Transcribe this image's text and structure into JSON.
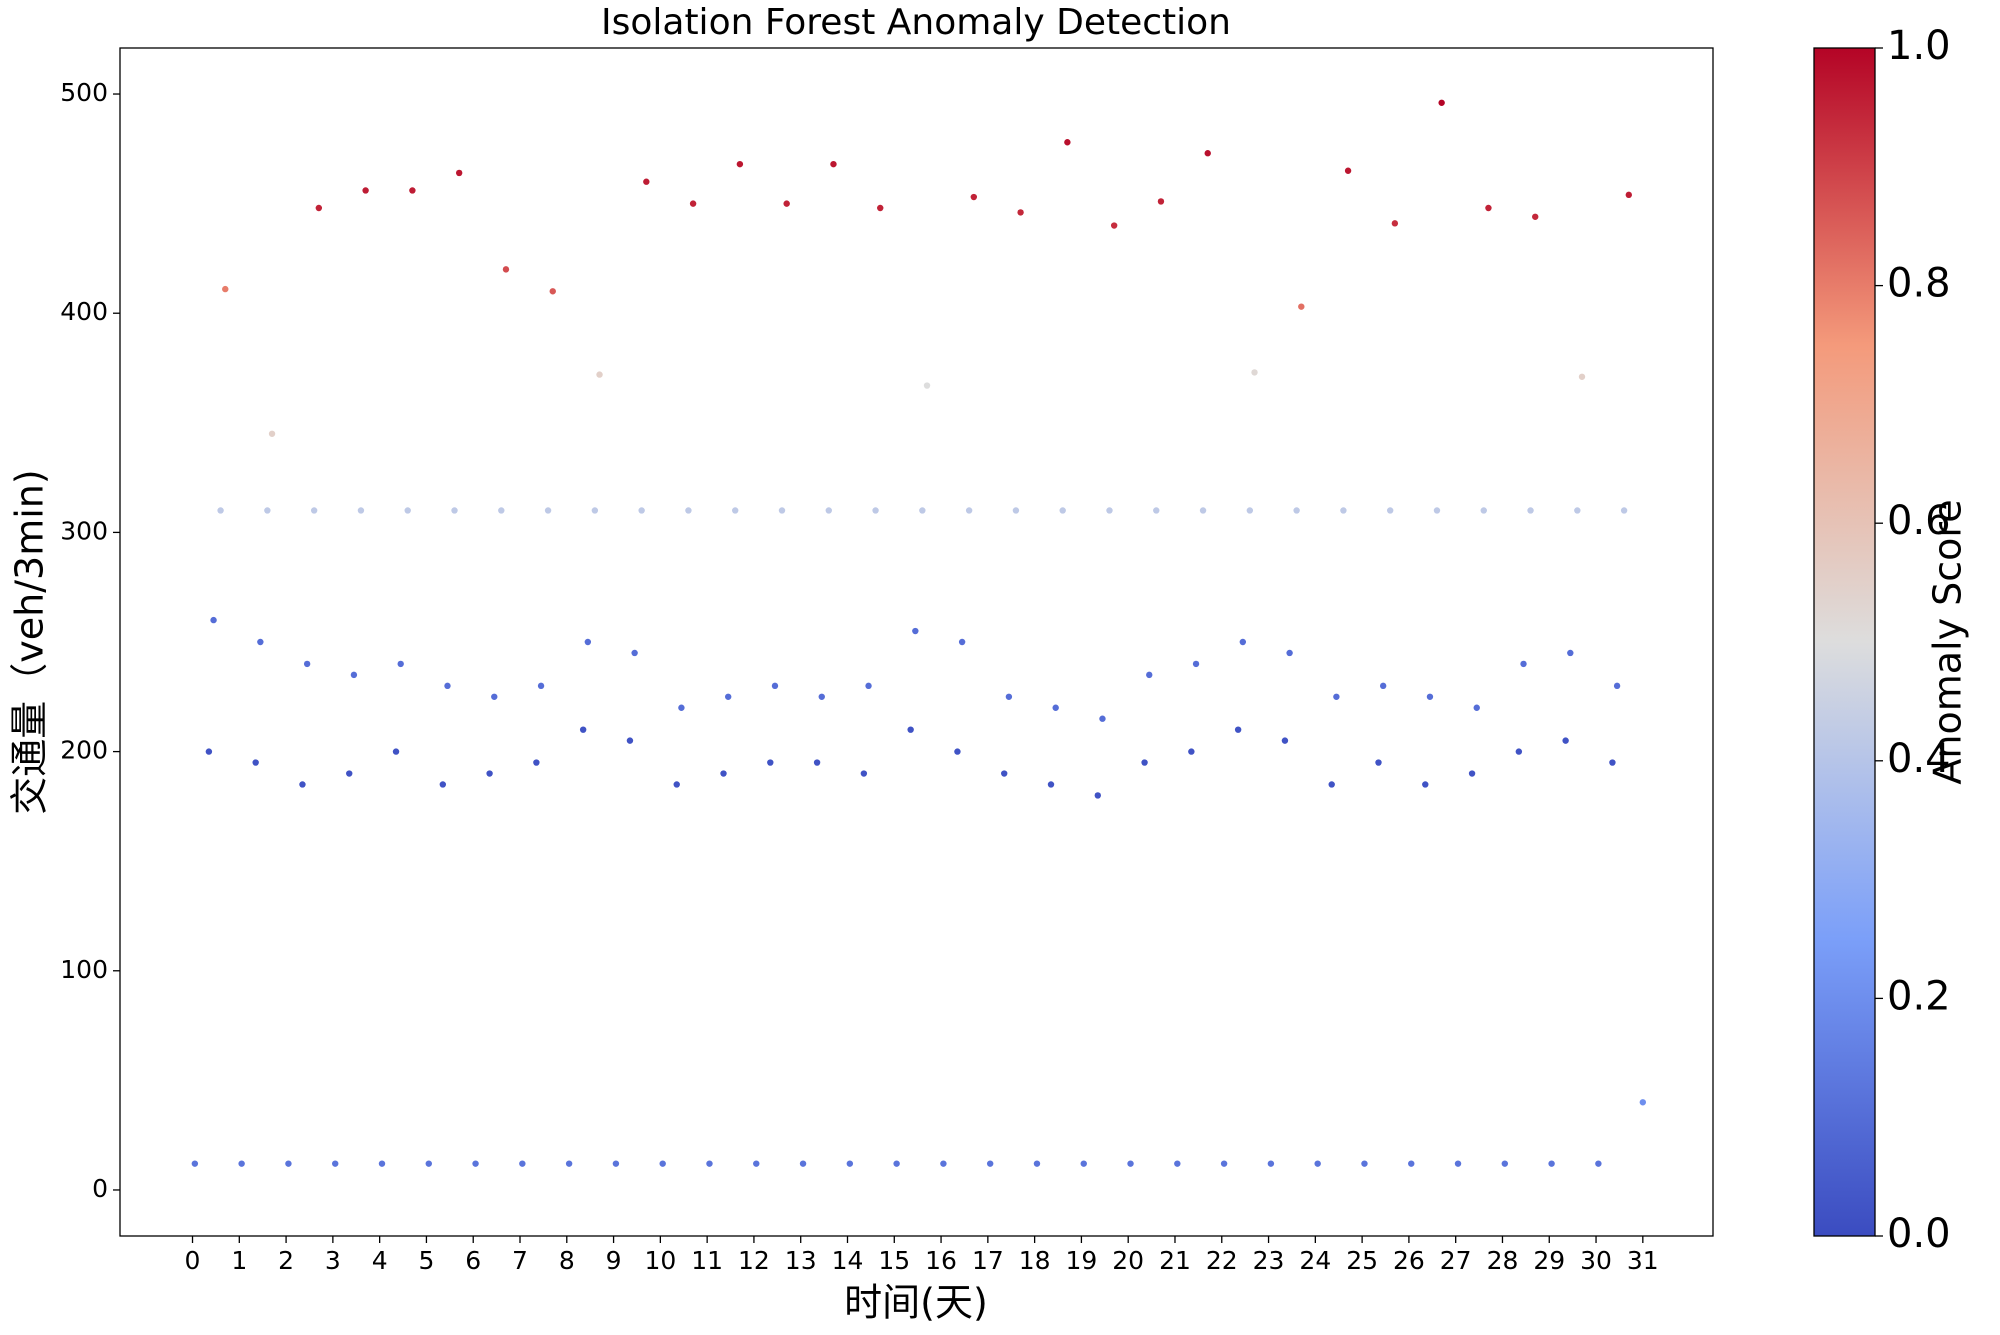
{
  "chart_data": {
    "type": "scatter",
    "title": "Isolation Forest Anomaly Detection",
    "x_label": "时间(天)",
    "y_label": "交通量（veh/3min)",
    "colormap": "coolwarm",
    "x": [
      0.05,
      0.35,
      0.45,
      0.6,
      0.7,
      1.05,
      1.35,
      1.45,
      1.6,
      1.7,
      2.05,
      2.35,
      2.45,
      2.6,
      2.7,
      3.05,
      3.35,
      3.45,
      3.6,
      3.7,
      4.05,
      4.35,
      4.45,
      4.6,
      4.7,
      5.05,
      5.35,
      5.45,
      5.6,
      5.7,
      6.05,
      6.35,
      6.45,
      6.6,
      6.7,
      7.05,
      7.35,
      7.45,
      7.6,
      7.7,
      8.05,
      8.35,
      8.45,
      8.6,
      8.7,
      9.05,
      9.35,
      9.45,
      9.6,
      9.7,
      10.05,
      10.35,
      10.45,
      10.6,
      10.7,
      11.05,
      11.35,
      11.45,
      11.6,
      11.7,
      12.05,
      12.35,
      12.45,
      12.6,
      12.7,
      13.05,
      13.35,
      13.45,
      13.6,
      13.7,
      14.05,
      14.35,
      14.45,
      14.6,
      14.7,
      15.05,
      15.35,
      15.45,
      15.6,
      15.7,
      16.05,
      16.35,
      16.45,
      16.6,
      16.7,
      17.05,
      17.35,
      17.45,
      17.6,
      17.7,
      18.05,
      18.35,
      18.45,
      18.6,
      18.7,
      19.05,
      19.35,
      19.45,
      19.6,
      19.7,
      20.05,
      20.35,
      20.45,
      20.6,
      20.7,
      21.05,
      21.35,
      21.45,
      21.6,
      21.7,
      22.05,
      22.35,
      22.45,
      22.6,
      22.7,
      23.05,
      23.35,
      23.45,
      23.6,
      23.7,
      24.05,
      24.35,
      24.45,
      24.6,
      24.7,
      25.05,
      25.35,
      25.45,
      25.6,
      25.7,
      26.05,
      26.35,
      26.45,
      26.6,
      26.7,
      27.05,
      27.35,
      27.45,
      27.6,
      27.7,
      28.05,
      28.35,
      28.45,
      28.6,
      28.7,
      29.05,
      29.35,
      29.45,
      29.6,
      29.7,
      30.05,
      30.35,
      30.45,
      30.6,
      30.7,
      31
    ],
    "values": [
      12,
      200,
      260,
      310,
      411,
      12,
      195,
      250,
      310,
      345,
      12,
      185,
      240,
      310,
      448,
      12,
      190,
      235,
      310,
      456,
      12,
      200,
      240,
      310,
      456,
      12,
      185,
      230,
      310,
      464,
      12,
      190,
      225,
      310,
      420,
      12,
      195,
      230,
      310,
      410,
      12,
      210,
      250,
      310,
      372,
      12,
      205,
      245,
      310,
      460,
      12,
      185,
      220,
      310,
      450,
      12,
      190,
      225,
      310,
      468,
      12,
      195,
      230,
      310,
      450,
      12,
      195,
      225,
      310,
      468,
      12,
      190,
      230,
      310,
      448,
      12,
      210,
      255,
      310,
      367,
      12,
      200,
      250,
      310,
      453,
      12,
      190,
      225,
      310,
      446,
      12,
      185,
      220,
      310,
      478,
      12,
      180,
      215,
      310,
      440,
      12,
      195,
      235,
      310,
      451,
      12,
      200,
      240,
      310,
      473,
      12,
      210,
      250,
      310,
      373,
      12,
      205,
      245,
      310,
      403,
      12,
      185,
      225,
      310,
      465,
      12,
      195,
      230,
      310,
      441,
      12,
      185,
      225,
      310,
      496,
      12,
      190,
      220,
      310,
      448,
      12,
      200,
      240,
      310,
      444,
      12,
      205,
      245,
      310,
      371,
      12,
      195,
      230,
      310,
      454,
      40
    ],
    "scores": [
      0.12,
      0.02,
      0.1,
      0.42,
      0.8,
      0.12,
      0.02,
      0.1,
      0.42,
      0.55,
      0.12,
      0.02,
      0.1,
      0.42,
      0.95,
      0.12,
      0.02,
      0.1,
      0.42,
      0.96,
      0.12,
      0.02,
      0.1,
      0.42,
      0.96,
      0.12,
      0.02,
      0.1,
      0.42,
      0.97,
      0.12,
      0.02,
      0.1,
      0.42,
      0.88,
      0.12,
      0.02,
      0.1,
      0.42,
      0.86,
      0.12,
      0.02,
      0.1,
      0.42,
      0.55,
      0.12,
      0.02,
      0.1,
      0.42,
      0.96,
      0.12,
      0.02,
      0.1,
      0.42,
      0.95,
      0.12,
      0.02,
      0.1,
      0.42,
      0.97,
      0.12,
      0.02,
      0.1,
      0.42,
      0.95,
      0.12,
      0.02,
      0.1,
      0.42,
      0.97,
      0.12,
      0.02,
      0.1,
      0.42,
      0.95,
      0.12,
      0.02,
      0.1,
      0.42,
      0.5,
      0.12,
      0.02,
      0.1,
      0.42,
      0.95,
      0.12,
      0.02,
      0.1,
      0.42,
      0.94,
      0.12,
      0.02,
      0.1,
      0.42,
      0.98,
      0.12,
      0.02,
      0.1,
      0.42,
      0.93,
      0.12,
      0.02,
      0.1,
      0.42,
      0.95,
      0.12,
      0.02,
      0.1,
      0.42,
      0.98,
      0.12,
      0.02,
      0.1,
      0.42,
      0.52,
      0.12,
      0.02,
      0.1,
      0.42,
      0.82,
      0.12,
      0.02,
      0.1,
      0.42,
      0.97,
      0.12,
      0.02,
      0.1,
      0.42,
      0.93,
      0.12,
      0.02,
      0.1,
      0.42,
      1.0,
      0.12,
      0.02,
      0.1,
      0.42,
      0.95,
      0.12,
      0.02,
      0.1,
      0.42,
      0.94,
      0.12,
      0.02,
      0.1,
      0.42,
      0.55,
      0.12,
      0.02,
      0.1,
      0.42,
      0.96,
      0.2
    ],
    "xlim": [
      -1.55,
      32.5
    ],
    "ylim": [
      -21,
      521
    ],
    "xticks": [
      0,
      1,
      2,
      3,
      4,
      5,
      6,
      7,
      8,
      9,
      10,
      11,
      12,
      13,
      14,
      15,
      16,
      17,
      18,
      19,
      20,
      21,
      22,
      23,
      24,
      25,
      26,
      27,
      28,
      29,
      30,
      31
    ],
    "yticks": [
      0,
      100,
      200,
      300,
      400,
      500
    ],
    "colorbar": {
      "label": "Anomaly Score",
      "lim": [
        0,
        1
      ],
      "ticks": [
        {
          "value": 0,
          "label": "0.0"
        },
        {
          "value": 0.2,
          "label": "0.2"
        },
        {
          "value": 0.4,
          "label": "0.4"
        },
        {
          "value": 0.6,
          "label": "0.6"
        },
        {
          "value": 0.8,
          "label": "0.8"
        },
        {
          "value": 1,
          "label": "1.0"
        }
      ]
    }
  }
}
